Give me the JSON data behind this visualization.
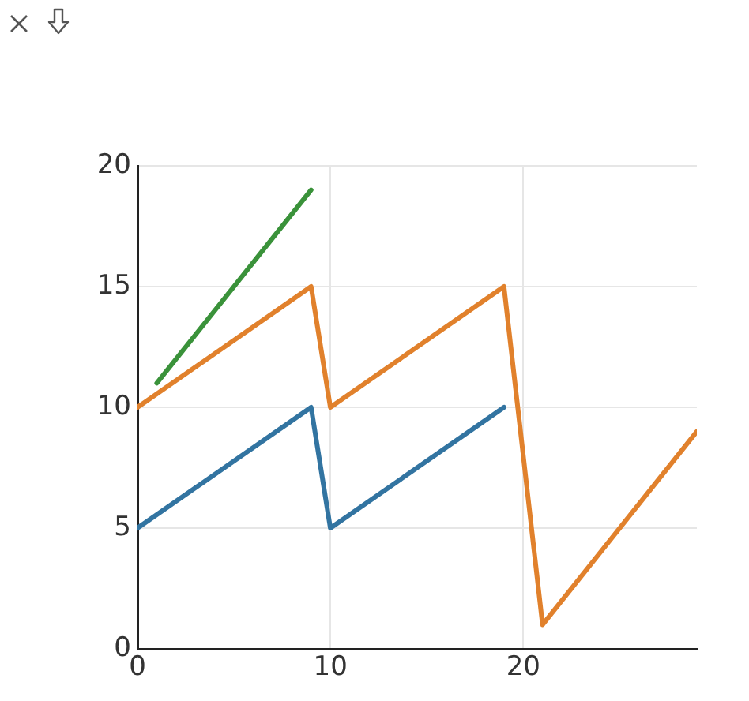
{
  "chart_data": {
    "type": "line",
    "xlim": [
      0,
      29
    ],
    "xticks": [
      0,
      10,
      20
    ],
    "ylim": [
      0,
      20
    ],
    "yticks": [
      0,
      5,
      10,
      15,
      20
    ],
    "grid": true,
    "legend": false,
    "marker": "none",
    "line_style": "solid",
    "series": [
      {
        "color": "#3274a1",
        "x": [
          0,
          9,
          10,
          19
        ],
        "values": [
          5,
          10,
          5,
          10
        ]
      },
      {
        "color": "#e1812c",
        "x": [
          0,
          9,
          10,
          19,
          21,
          29
        ],
        "values": [
          10,
          15,
          10,
          15,
          1,
          9
        ]
      },
      {
        "color": "#3a923a",
        "x": [
          1,
          9
        ],
        "values": [
          11,
          19
        ]
      }
    ]
  }
}
